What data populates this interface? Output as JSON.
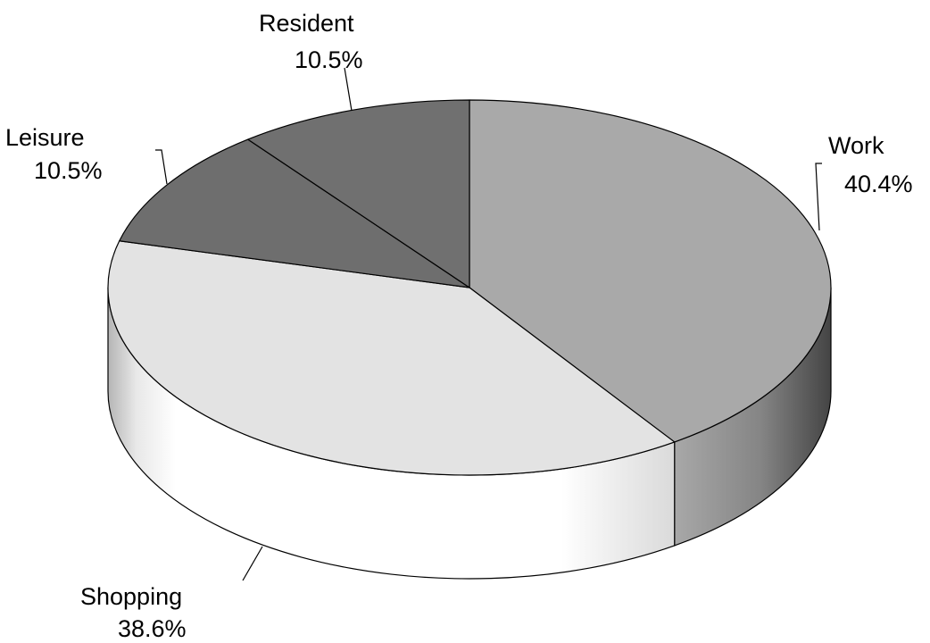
{
  "chart_data": {
    "type": "pie",
    "title": "",
    "three_d": true,
    "start_angle_deg": 90,
    "direction": "clockwise",
    "colors": {
      "Work": "#a9a9a9",
      "Shopping": "#e3e3e3",
      "Leisure": "#6e6e6e",
      "Resident": "#707070",
      "outline": "#000000",
      "background": "#ffffff"
    },
    "slices": [
      {
        "label": "Work",
        "value": 40.4,
        "value_label": "40.4%"
      },
      {
        "label": "Shopping",
        "value": 38.6,
        "value_label": "38.6%"
      },
      {
        "label": "Leisure",
        "value": 10.5,
        "value_label": "10.5%"
      },
      {
        "label": "Resident",
        "value": 10.5,
        "value_label": "10.5%"
      }
    ],
    "legend": "none",
    "data_labels": "outside with leader lines"
  }
}
